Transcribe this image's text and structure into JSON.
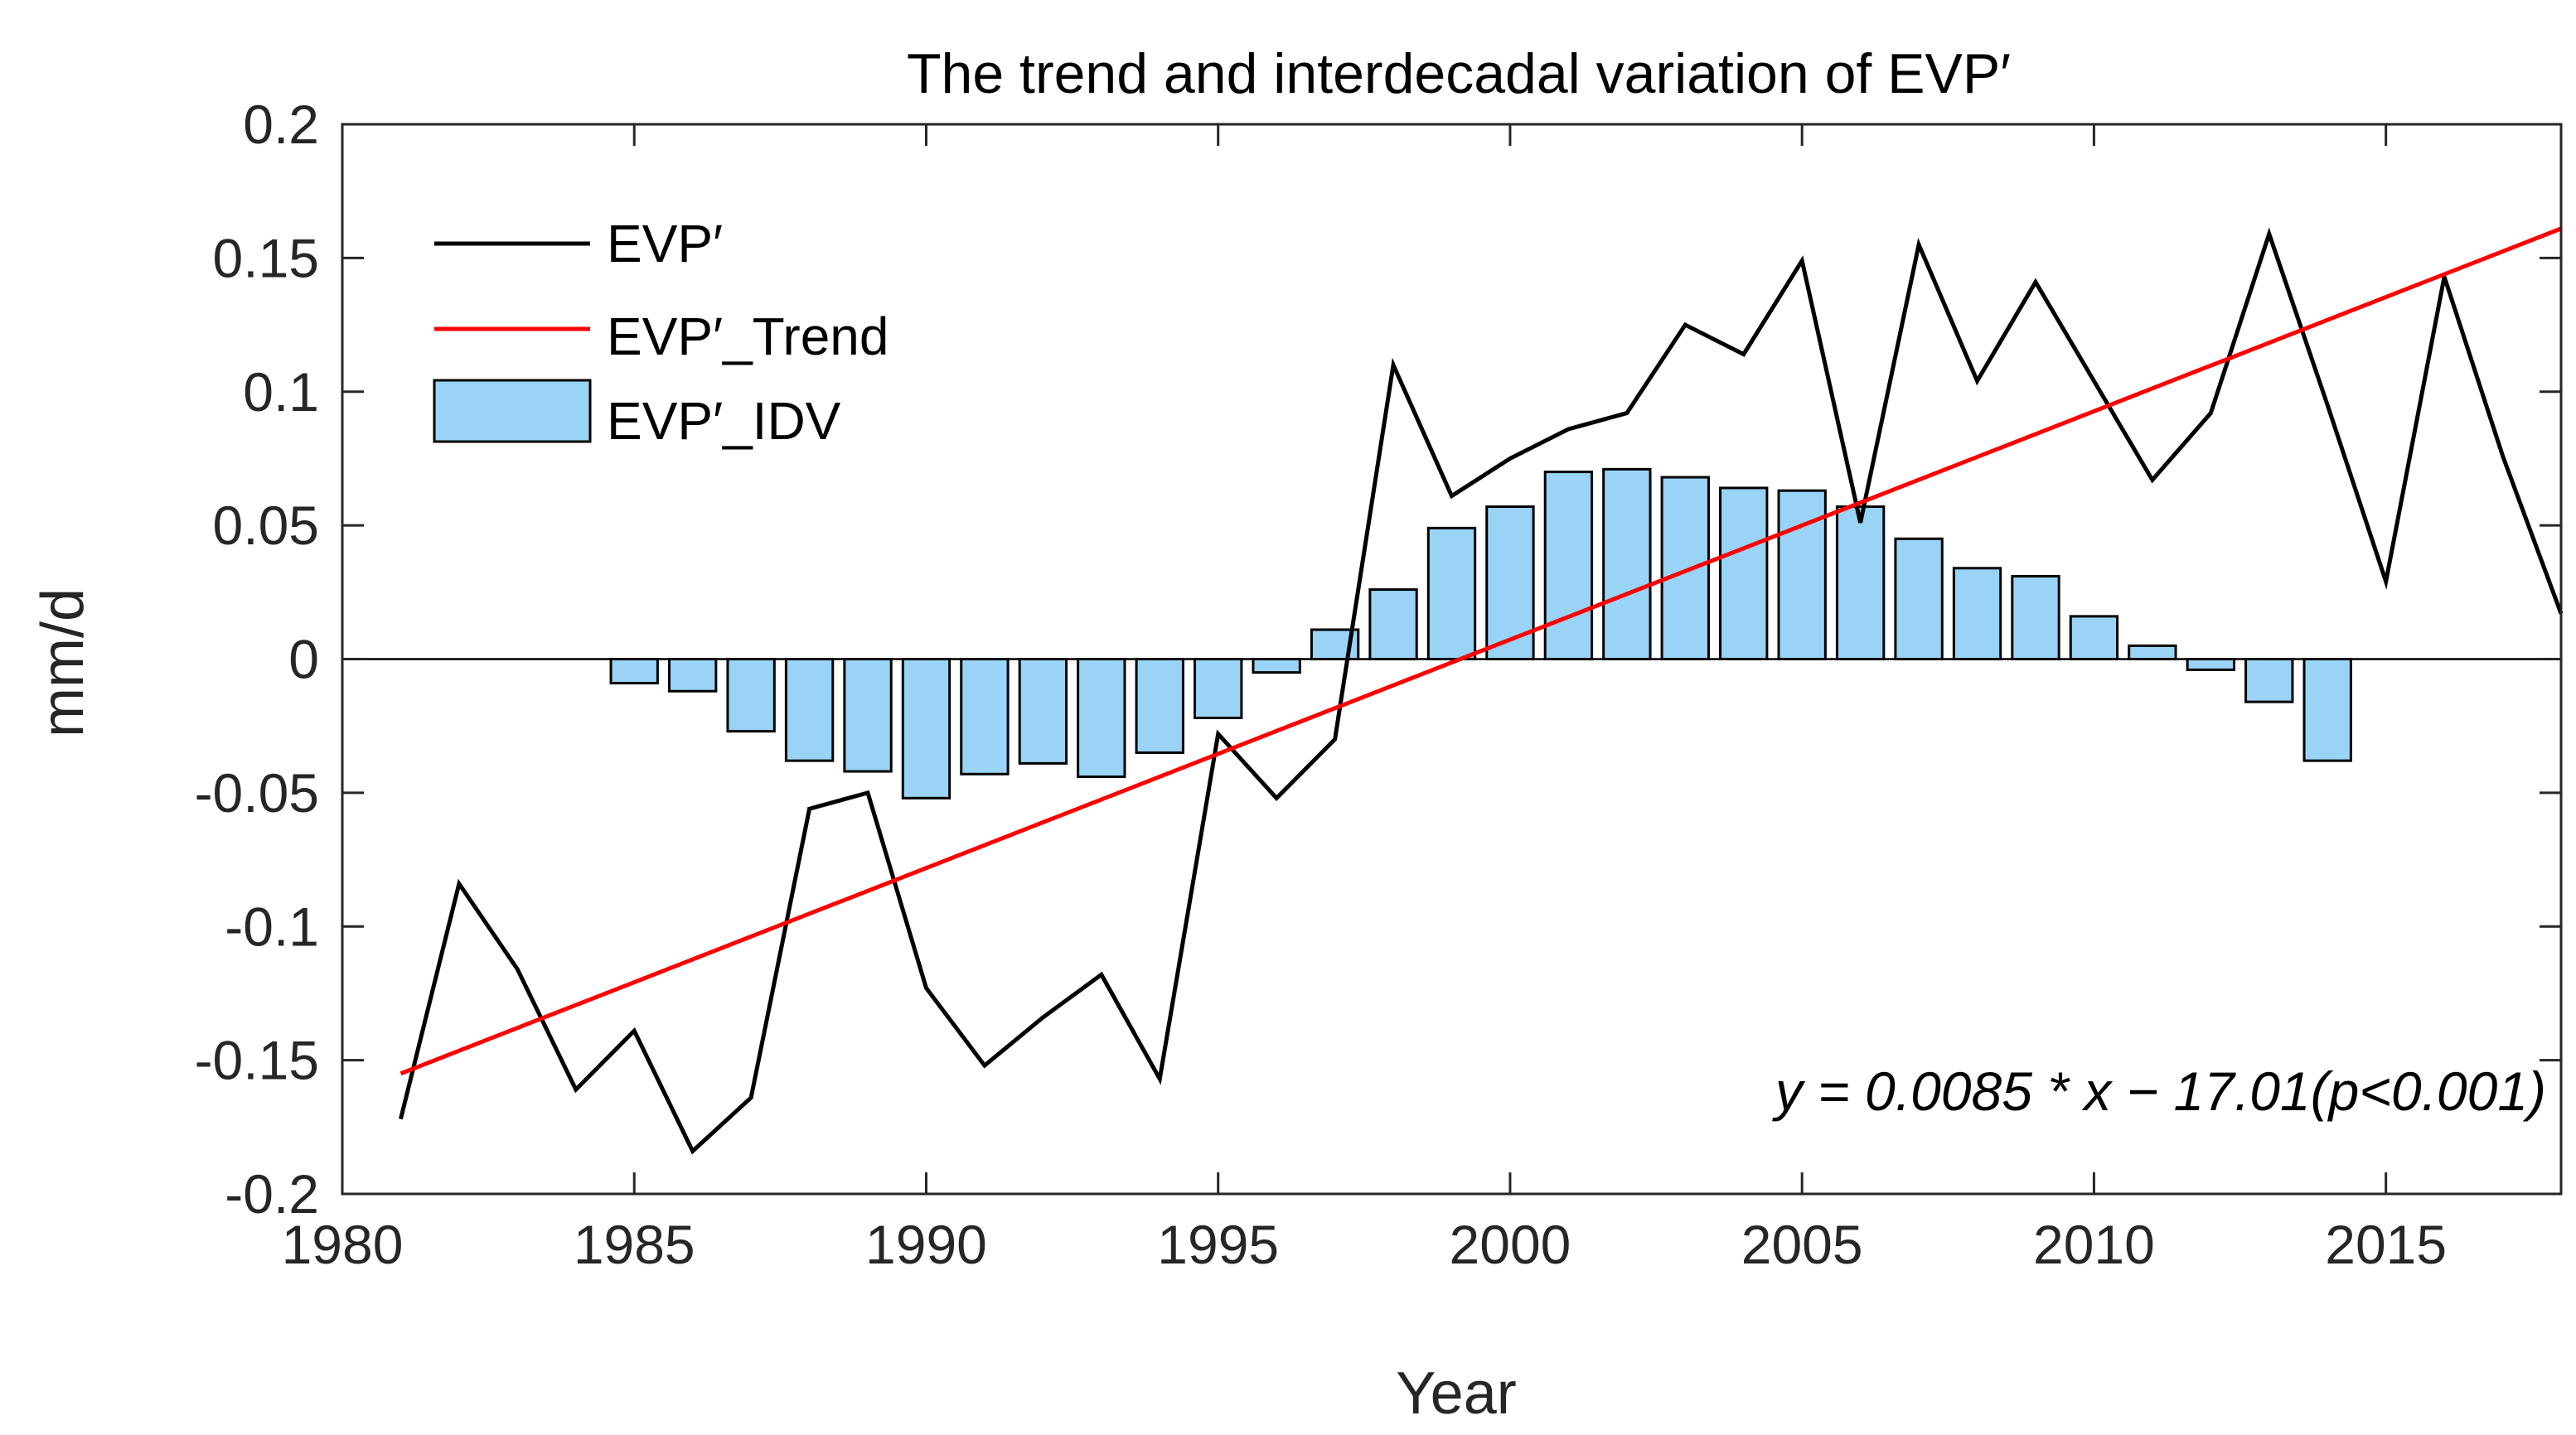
{
  "chart_data": {
    "type": "bar+line",
    "title": "The trend and interdecadal variation of EVP′",
    "xlabel": "Year",
    "ylabel": "mm/d",
    "xlim": [
      1980,
      2018
    ],
    "ylim": [
      -0.2,
      0.2
    ],
    "xticks": [
      1980,
      1985,
      1990,
      1995,
      2000,
      2005,
      2010,
      2015
    ],
    "yticks": [
      -0.2,
      -0.15,
      -0.1,
      -0.05,
      0,
      0.05,
      0.1,
      0.15,
      0.2
    ],
    "xtick_labels": [
      "1980",
      "1985",
      "1990",
      "1995",
      "2000",
      "2005",
      "2010",
      "2015"
    ],
    "ytick_labels": [
      "-0.2",
      "-0.15",
      "-0.1",
      "-0.05",
      "0",
      "0.05",
      "0.1",
      "0.15",
      "0.2"
    ],
    "legend_position": "top-left",
    "series": [
      {
        "name": "EVP′",
        "kind": "line",
        "color": "#000000",
        "x": [
          1981,
          1982,
          1983,
          1984,
          1985,
          1986,
          1987,
          1988,
          1989,
          1990,
          1991,
          1992,
          1993,
          1994,
          1995,
          1996,
          1997,
          1998,
          1999,
          2000,
          2001,
          2002,
          2003,
          2004,
          2005,
          2006,
          2007,
          2008,
          2009,
          2010,
          2011,
          2012,
          2013,
          2014,
          2015,
          2016,
          2017,
          2018
        ],
        "values": [
          -0.172,
          -0.084,
          -0.116,
          -0.161,
          -0.139,
          -0.184,
          -0.164,
          -0.056,
          -0.05,
          -0.123,
          -0.152,
          -0.134,
          -0.118,
          -0.157,
          -0.028,
          -0.052,
          -0.03,
          0.11,
          0.061,
          0.075,
          0.086,
          0.092,
          0.125,
          0.114,
          0.149,
          0.051,
          0.155,
          0.104,
          0.141,
          0.104,
          0.067,
          0.092,
          0.159,
          0.095,
          0.029,
          0.143,
          0.076,
          0.017
        ]
      },
      {
        "name": "EVP′_Trend",
        "kind": "line",
        "color": "#ff0000",
        "x": [
          1981,
          2018
        ],
        "values": [
          -0.155,
          0.161
        ]
      },
      {
        "name": "EVP′_IDV",
        "kind": "bar",
        "color": "#99d3f6",
        "x": [
          1985,
          1986,
          1987,
          1988,
          1989,
          1990,
          1991,
          1992,
          1993,
          1994,
          1995,
          1996,
          1997,
          1998,
          1999,
          2000,
          2001,
          2002,
          2003,
          2004,
          2005,
          2006,
          2007,
          2008,
          2009,
          2010,
          2011,
          2012,
          2013,
          2014
        ],
        "values": [
          -0.009,
          -0.012,
          -0.027,
          -0.038,
          -0.042,
          -0.052,
          -0.043,
          -0.039,
          -0.044,
          -0.035,
          -0.022,
          -0.005,
          0.011,
          0.026,
          0.049,
          0.057,
          0.07,
          0.071,
          0.068,
          0.064,
          0.063,
          0.057,
          0.045,
          0.034,
          0.031,
          0.016,
          0.005,
          -0.004,
          -0.016,
          -0.038
        ]
      }
    ],
    "annotation": "y = 0.0085 * x − 17.01(p<0.001)"
  }
}
